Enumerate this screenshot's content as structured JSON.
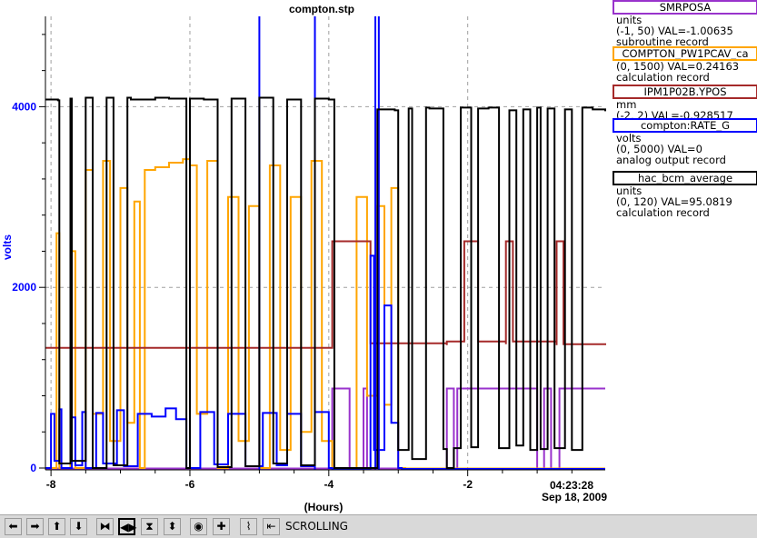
{
  "chart_data": {
    "type": "line",
    "title": "compton.stp",
    "xlabel": "(Hours)",
    "ylabel": "volts",
    "xlim": [
      -8.08,
      -0.02
    ],
    "ylim": [
      -20,
      5000
    ],
    "x_ticks": [
      -8,
      -6,
      -4,
      -2
    ],
    "y_ticks": [
      0,
      2000,
      4000
    ],
    "grid": true,
    "timestamp_time": "04:23:28",
    "timestamp_date": "Sep 18, 2009",
    "series": [
      {
        "name": "SMRPOSA",
        "color": "#9933cc",
        "x": [
          -8.08,
          -3.95,
          -3.95,
          -3.7,
          -3.7,
          -3.5,
          -3.5,
          -3.45,
          -3.45,
          -2.3,
          -2.3,
          -2.2,
          -2.2,
          -2.15,
          -2.15,
          -1.0,
          -1.0,
          -0.9,
          -0.9,
          -0.8,
          -0.8,
          -0.68,
          -0.68,
          -0.02
        ],
        "values": [
          -5,
          -5,
          880,
          880,
          -5,
          -5,
          880,
          880,
          -5,
          -5,
          880,
          880,
          -5,
          -5,
          880,
          880,
          -5,
          -5,
          880,
          880,
          -5,
          -5,
          880,
          880
        ]
      },
      {
        "name": "COMPTON_PW1PCAV_ca",
        "color": "#ffa500",
        "x": [
          -8.08,
          -7.92,
          -7.88,
          -7.72,
          -7.65,
          -7.5,
          -7.4,
          -7.25,
          -7.15,
          -7.0,
          -6.9,
          -6.8,
          -6.72,
          -6.65,
          -6.5,
          -6.3,
          -6.1,
          -6.0,
          -5.9,
          -5.75,
          -5.6,
          -5.45,
          -5.3,
          -5.15,
          -5.0,
          -4.85,
          -4.7,
          -4.55,
          -4.4,
          -4.25,
          -4.1,
          -3.95,
          -3.9,
          -3.6,
          -3.45,
          -3.3,
          -3.2,
          -3.1,
          -3.0,
          -2.9,
          -0.02
        ],
        "values": [
          0,
          2600,
          0,
          2400,
          0,
          3300,
          600,
          3400,
          300,
          3100,
          500,
          2950,
          0,
          3300,
          3330,
          3380,
          3420,
          3350,
          600,
          3400,
          0,
          3000,
          300,
          2900,
          0,
          3350,
          200,
          3000,
          400,
          3400,
          300,
          0,
          0,
          3000,
          800,
          2900,
          700,
          3100,
          0,
          -5,
          -5
        ]
      },
      {
        "name": "IPM1P02B.YPOS",
        "color": "#a52a2a",
        "x": [
          -8.08,
          -3.95,
          -3.95,
          -3.4,
          -3.4,
          -2.3,
          -2.3,
          -2.05,
          -2.05,
          -1.95,
          -1.95,
          -1.85,
          -1.85,
          -1.45,
          -1.45,
          -1.35,
          -1.35,
          -0.72,
          -0.72,
          -0.62,
          -0.62,
          -0.02
        ],
        "values": [
          1330,
          1340,
          2510,
          2510,
          1380,
          1360,
          1400,
          2510,
          2510,
          1600,
          2510,
          2510,
          1400,
          1370,
          2510,
          2510,
          1400,
          1360,
          2510,
          2510,
          1370,
          1360
        ]
      },
      {
        "name": "compton:RATE_G",
        "color": "#0000ff",
        "x": [
          -8.08,
          -8.0,
          -7.95,
          -7.88,
          -7.85,
          -7.7,
          -7.65,
          -7.55,
          -7.5,
          -7.35,
          -7.25,
          -7.05,
          -6.95,
          -6.75,
          -6.55,
          -6.35,
          -6.2,
          -6.05,
          -5.85,
          -5.65,
          -5.45,
          -5.2,
          -4.95,
          -4.75,
          -4.6,
          -4.4,
          -4.2,
          -4.0,
          -3.95,
          -3.5,
          -3.4,
          -3.35,
          -3.2,
          -3.1,
          -3.0,
          -2.95,
          -0.02
        ],
        "values": [
          0,
          600,
          80,
          650,
          0,
          560,
          30,
          620,
          0,
          610,
          50,
          640,
          20,
          600,
          570,
          660,
          540,
          0,
          620,
          40,
          600,
          20,
          610,
          30,
          600,
          20,
          620,
          0,
          -10,
          -10,
          2350,
          200,
          1800,
          500,
          0,
          -10,
          -10
        ],
        "spikes": [
          -5.0,
          -4.2,
          -3.33,
          -3.28
        ]
      },
      {
        "name": "hac_bcm_average",
        "color": "#000000",
        "x": [
          -8.08,
          -7.9,
          -7.88,
          -7.72,
          -7.7,
          -7.5,
          -7.4,
          -7.2,
          -7.1,
          -6.9,
          -6.85,
          -6.5,
          -6.3,
          -6.05,
          -6.0,
          -5.8,
          -5.6,
          -5.4,
          -5.2,
          -5.0,
          -4.8,
          -4.6,
          -4.4,
          -4.2,
          -4.0,
          -3.95,
          -3.92,
          -3.35,
          -3.3,
          -3.05,
          -3.0,
          -2.85,
          -2.8,
          -2.6,
          -2.55,
          -2.35,
          -2.3,
          -2.2,
          -2.1,
          -1.95,
          -1.85,
          -1.7,
          -1.55,
          -1.4,
          -1.3,
          -1.2,
          -1.1,
          -1.0,
          -0.95,
          -0.85,
          -0.75,
          -0.6,
          -0.5,
          -0.35,
          -0.2,
          -0.02
        ],
        "values": [
          4080,
          4070,
          50,
          4090,
          80,
          4100,
          0,
          4100,
          30,
          4100,
          4080,
          4100,
          4090,
          0,
          4090,
          4080,
          10,
          4090,
          20,
          4100,
          50,
          4080,
          30,
          4090,
          4080,
          4080,
          0,
          0,
          3970,
          3960,
          200,
          3980,
          100,
          3990,
          3980,
          210,
          0,
          220,
          3990,
          230,
          3980,
          3990,
          220,
          3960,
          250,
          3970,
          200,
          3990,
          210,
          3980,
          220,
          3970,
          200,
          3990,
          3970,
          3950
        ]
      }
    ]
  },
  "legend": [
    {
      "name": "SMRPOSA",
      "color": "#9933cc",
      "units": "units",
      "range_value": "(-1, 50) VAL=-1.00635",
      "record": "subroutine record"
    },
    {
      "name": "COMPTON_PW1PCAV_ca",
      "color": "#ffa500",
      "units": "",
      "range_value": "(0, 1500) VAL=0.24163",
      "record": "calculation record"
    },
    {
      "name": "IPM1P02B.YPOS",
      "color": "#a52a2a",
      "units": "mm",
      "range_value": "(-2, 2) VAL=-0.928517",
      "record": ""
    },
    {
      "name": "compton:RATE_G",
      "color": "#0000ff",
      "units": "volts",
      "range_value": "(0, 5000) VAL=0",
      "record": "analog output record"
    },
    {
      "name": "hac_bcm_average",
      "color": "#000000",
      "units": "units",
      "range_value": "(0, 120) VAL=95.0819",
      "record": "calculation record"
    }
  ],
  "toolbar": {
    "status": "SCROLLING",
    "buttons": [
      {
        "name": "scroll-left-button",
        "glyph": "⬅"
      },
      {
        "name": "scroll-right-button",
        "glyph": "➡"
      },
      {
        "name": "scroll-up-button",
        "glyph": "⬆"
      },
      {
        "name": "scroll-down-button",
        "glyph": "⬇"
      },
      {
        "name": "zoom-in-horizontal-button",
        "glyph": "⧓"
      },
      {
        "name": "zoom-out-horizontal-button",
        "glyph": "◀▶",
        "active": true
      },
      {
        "name": "zoom-in-vertical-button",
        "glyph": "⧗"
      },
      {
        "name": "zoom-out-vertical-button",
        "glyph": "⬍"
      },
      {
        "name": "autoscale-button",
        "glyph": "◉"
      },
      {
        "name": "add-button",
        "glyph": "✚"
      },
      {
        "name": "toggle-scrolling-button",
        "glyph": "⌇"
      },
      {
        "name": "pan-to-now-button",
        "glyph": "⇤"
      }
    ]
  }
}
